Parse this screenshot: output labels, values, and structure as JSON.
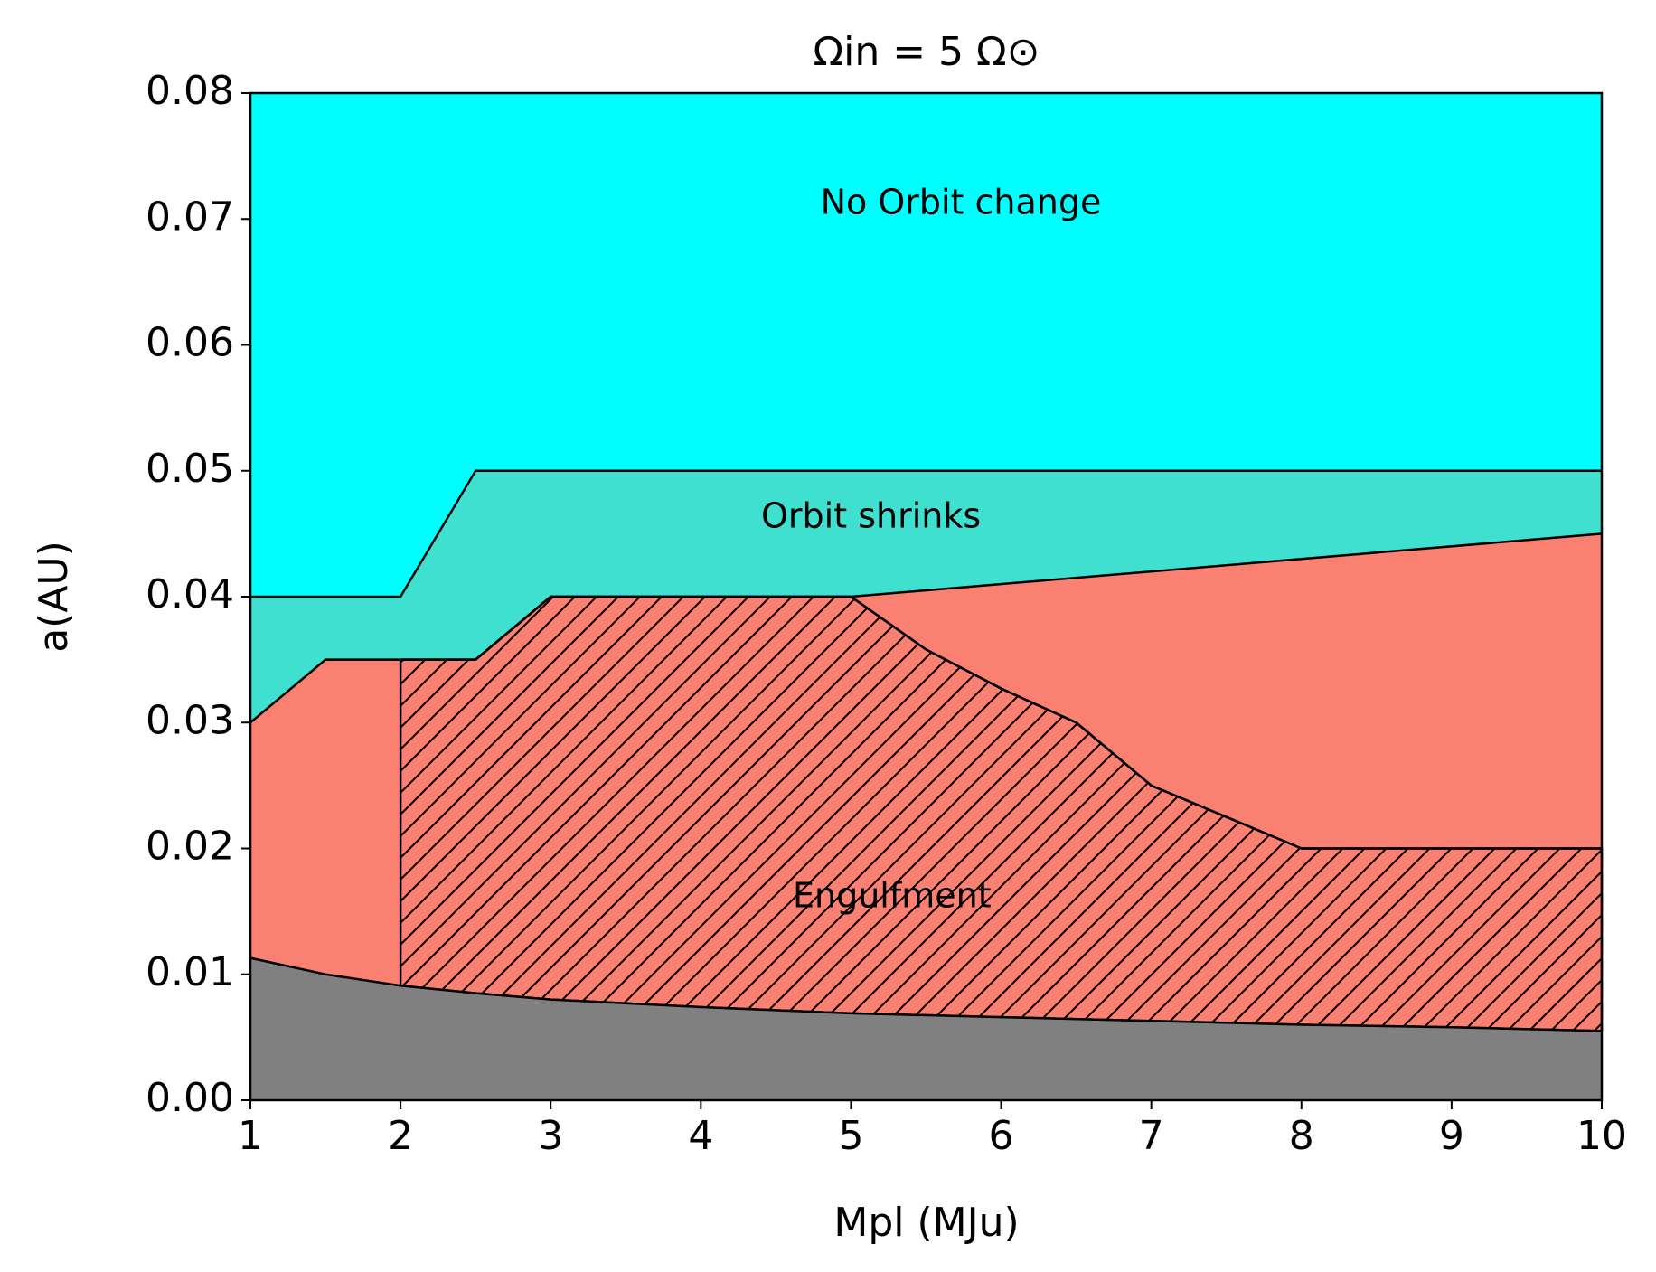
{
  "chart_data": {
    "type": "area",
    "title": "Ωin = 5 Ω⊙",
    "xlabel": "Mpl (MJu)",
    "ylabel": "a(AU)",
    "xlim": [
      1,
      10
    ],
    "ylim": [
      0,
      0.08
    ],
    "xticks": [
      1,
      2,
      3,
      4,
      5,
      6,
      7,
      8,
      9,
      10
    ],
    "yticks": [
      {
        "value": 0,
        "label": "0.00"
      },
      0.01,
      0.02,
      0.03,
      0.04,
      0.05,
      0.06,
      0.07,
      0.08
    ],
    "background_color": "#00ffff",
    "boundaries": [
      {
        "x": [
          1,
          2,
          2.5,
          10
        ],
        "y": [
          0.04,
          0.04,
          0.05,
          0.05
        ],
        "color": "#40e0d0",
        "hatched": false
      },
      {
        "x": [
          1,
          1.5,
          2,
          2.5,
          3,
          5,
          10
        ],
        "y": [
          0.03,
          0.035,
          0.035,
          0.035,
          0.04,
          0.04,
          0.045
        ],
        "color": "#fa8072",
        "hatched": false
      },
      {
        "x": [
          2,
          2.5,
          3,
          5,
          5.5,
          6,
          6.5,
          7,
          8,
          10
        ],
        "y": [
          0.035,
          0.035,
          0.04,
          0.04,
          0.0358,
          0.0327,
          0.03,
          0.025,
          0.02,
          0.02
        ],
        "color": "#fa8072",
        "hatched": true
      },
      {
        "x": [
          1,
          1.5,
          2,
          2.5,
          3,
          4,
          5,
          6,
          7,
          8,
          9,
          10
        ],
        "y": [
          0.0113,
          0.01,
          0.0091,
          0.0085,
          0.008,
          0.0074,
          0.0069,
          0.0066,
          0.0063,
          0.006,
          0.0058,
          0.0055
        ],
        "color": "#808080",
        "hatched": false
      }
    ],
    "annotations": [
      "No Orbit change",
      "Orbit shrinks",
      "Engulfment"
    ]
  }
}
